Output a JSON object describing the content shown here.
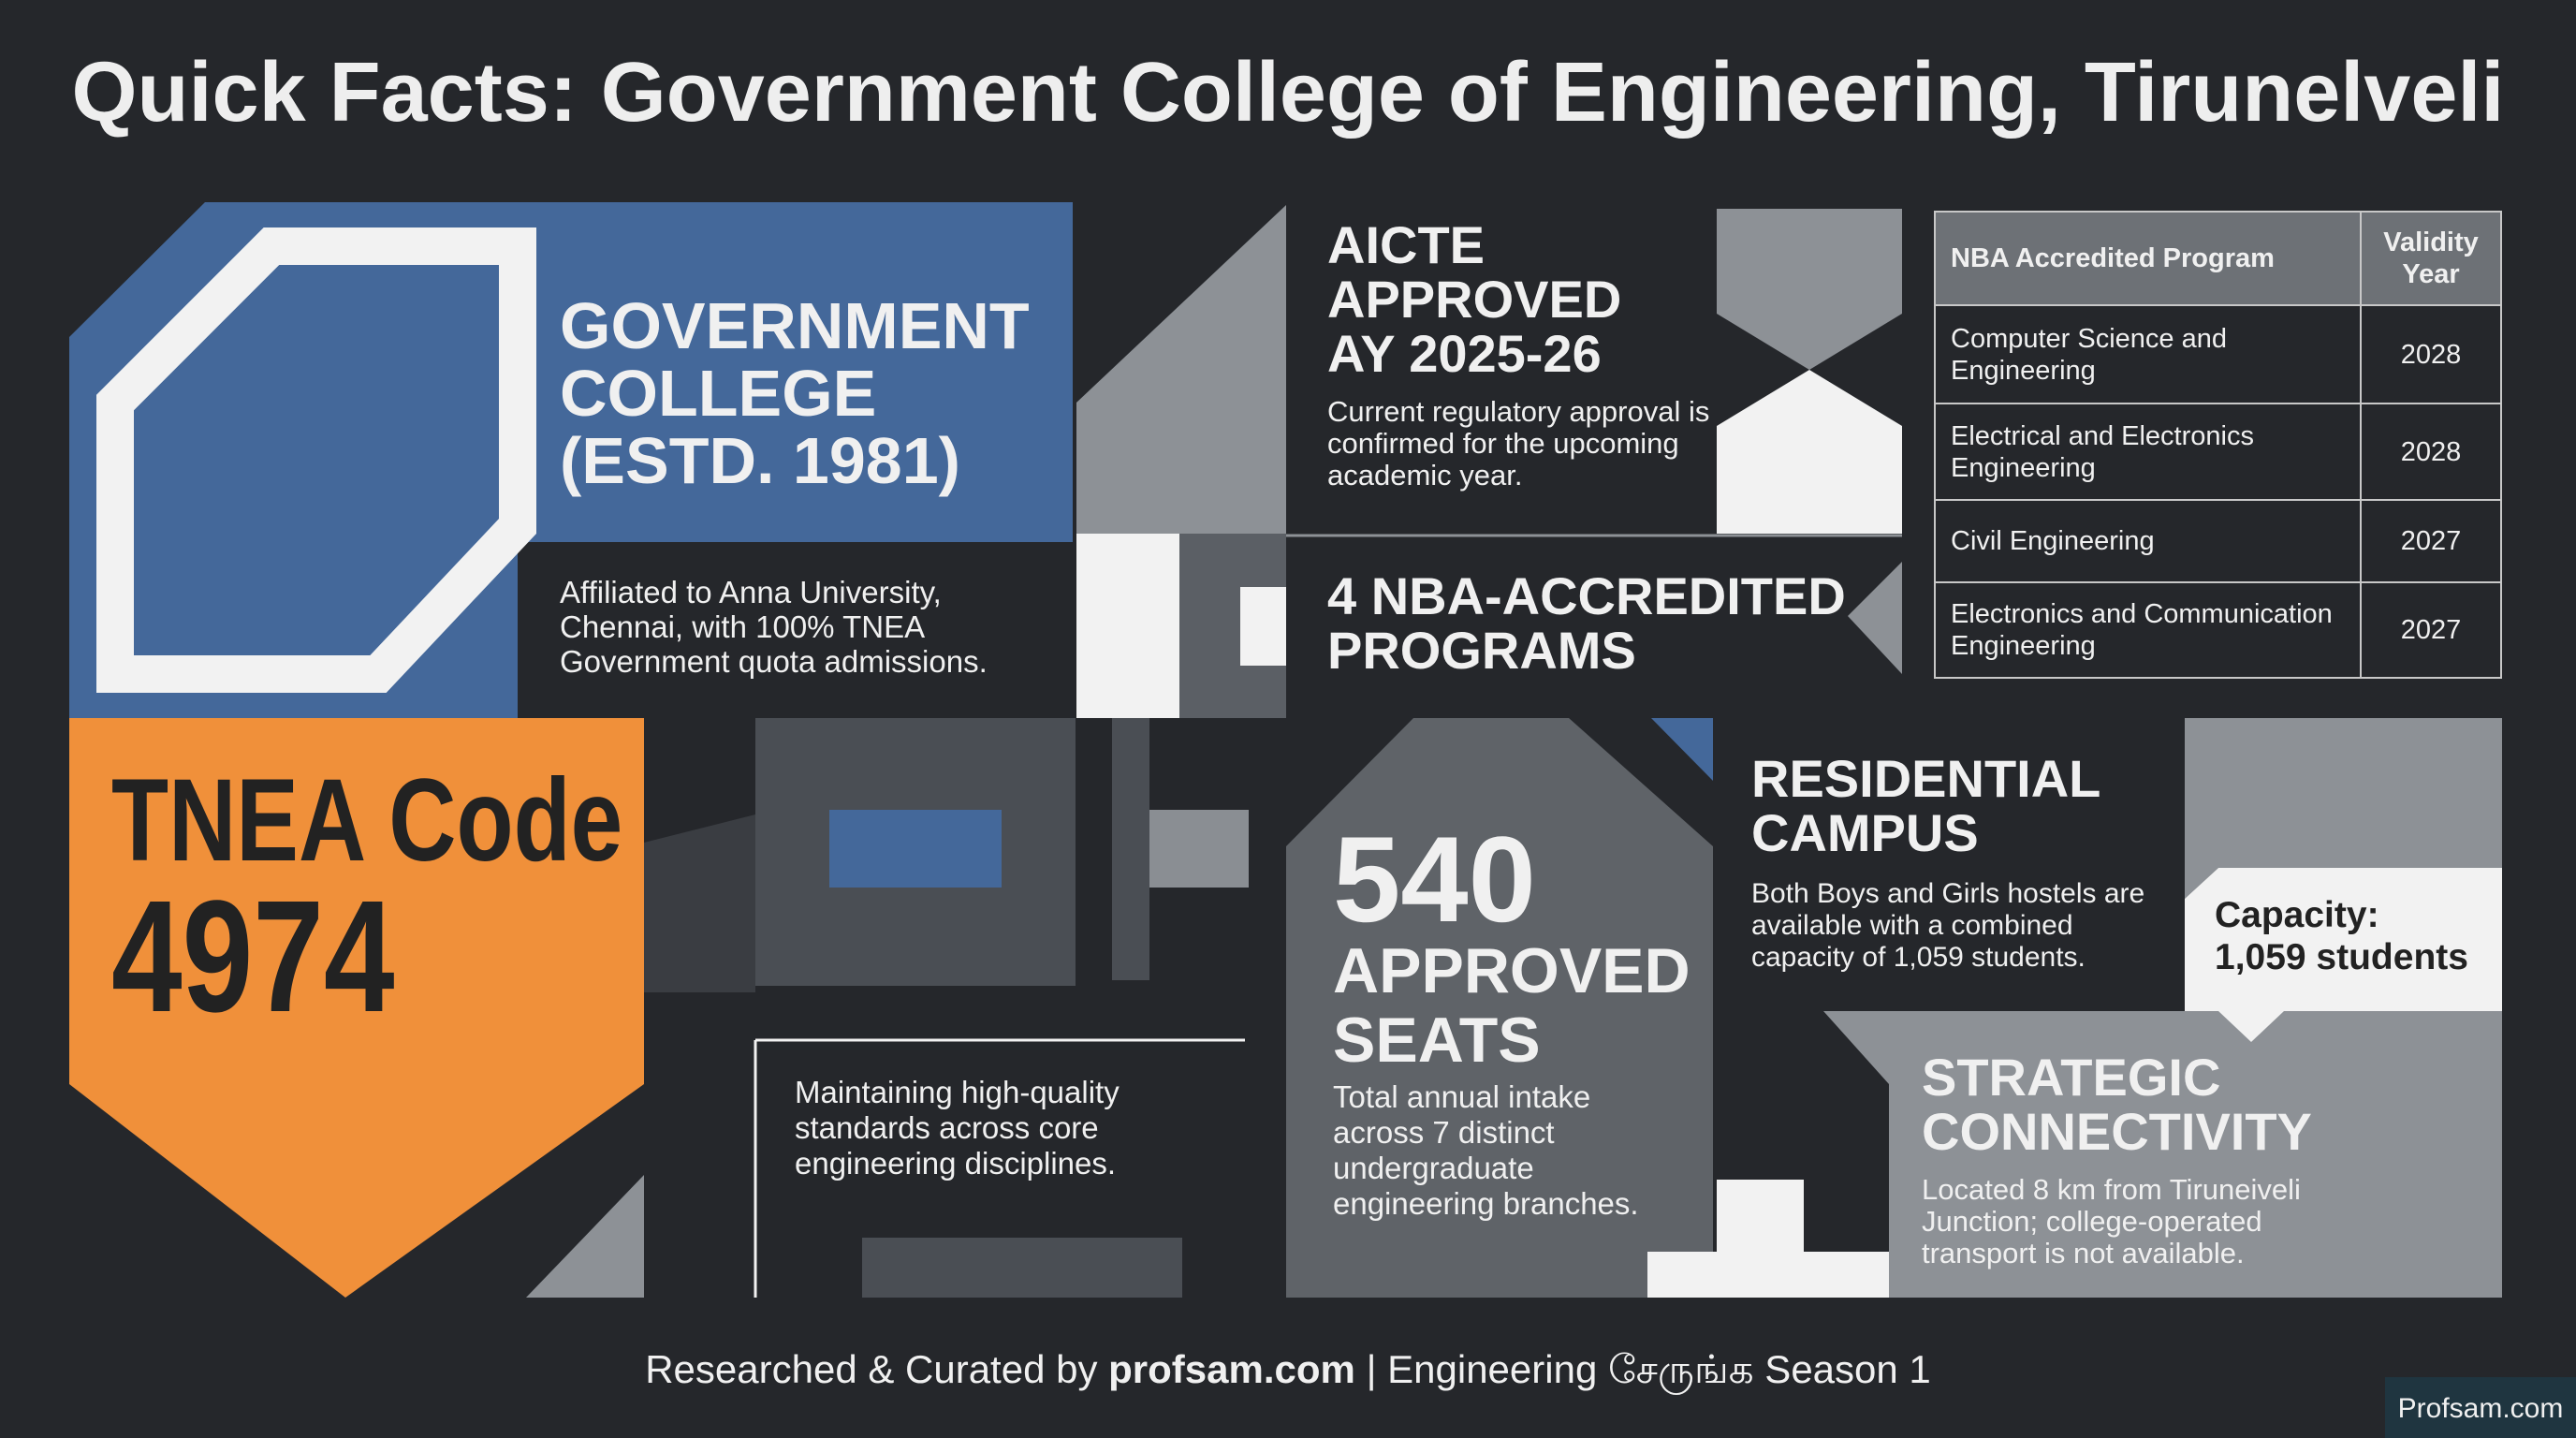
{
  "title": "Quick Facts: Government College of Engineering, Tirunelveli",
  "college": {
    "title": [
      "GOVERNMENT",
      "COLLEGE",
      "(ESTD. 1981)"
    ],
    "text": "Affiliated to Anna University, Chennai, with 100% TNEA Government quota admissions."
  },
  "tnea": {
    "label": "TNEA Code",
    "code": "4974"
  },
  "quality": {
    "text": "Maintaining high-quality standards across core engineering disciplines."
  },
  "aicte": {
    "title": [
      "AICTE",
      "APPROVED",
      "AY 2025-26"
    ],
    "text": "Current regulatory approval is confirmed for the upcoming academic year."
  },
  "nba": {
    "title": [
      "4 NBA-ACCREDITED",
      "PROGRAMS"
    ]
  },
  "table": {
    "header": [
      "NBA Accredited Program",
      "Validity Year"
    ],
    "rows": [
      [
        "Computer Science and Engineering",
        "2028"
      ],
      [
        "Electrical and Electronics Engineering",
        "2028"
      ],
      [
        "Civil Engineering",
        "2027"
      ],
      [
        "Electronics and Communication Engineering",
        "2027"
      ]
    ]
  },
  "seats": {
    "number": "540",
    "title": [
      "APPROVED",
      "SEATS"
    ],
    "text": "Total annual intake across 7 distinct undergraduate engineering branches."
  },
  "residential": {
    "title": [
      "RESIDENTIAL",
      "CAMPUS"
    ],
    "text": "Both Boys and Girls hostels are available with a combined capacity of 1,059 students.",
    "capacity": [
      "Capacity:",
      "1,059 students"
    ]
  },
  "connectivity": {
    "title": [
      "STRATEGIC",
      "CONNECTIVITY"
    ],
    "text": "Located 8 km from Tiruneiveli Junction; college-operated transport is not available."
  },
  "footer": {
    "prefix": "Researched & Curated by",
    "site": "profsam.com",
    "suffix": "| Engineering சேருங்க Season 1"
  },
  "logo": "Profsam.com"
}
